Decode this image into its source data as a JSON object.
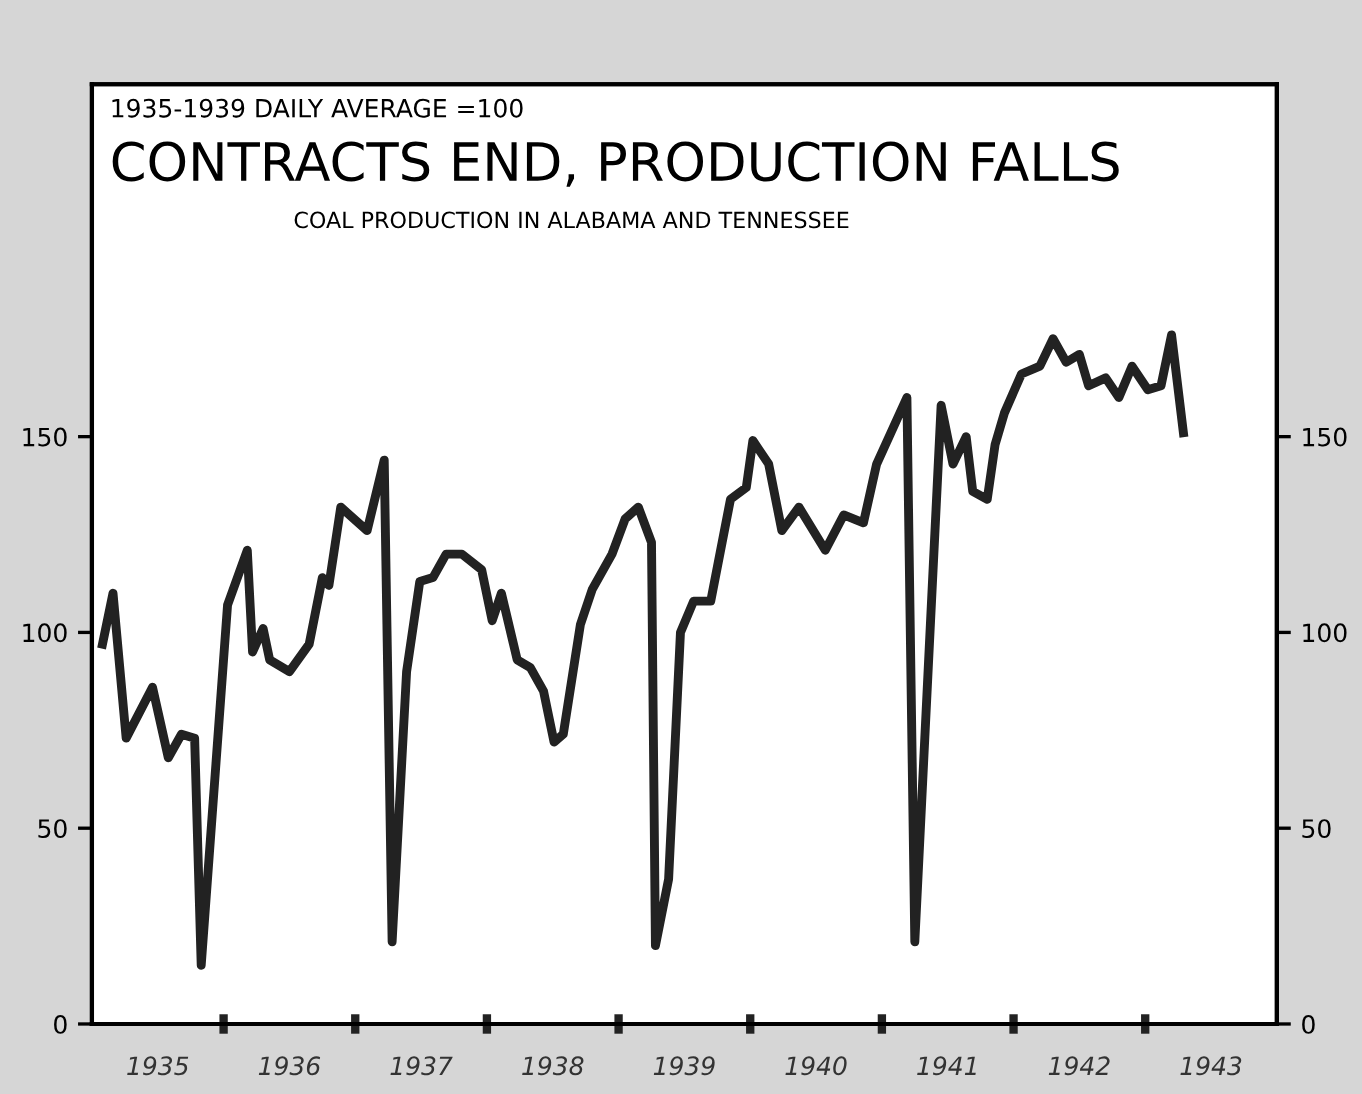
{
  "chart_data": {
    "type": "line",
    "title": "CONTRACTS END, PRODUCTION FALLS",
    "subtitle": "COAL PRODUCTION IN ALABAMA AND TENNESSEE",
    "annotations": [
      "1935-1939 DAILY AVERAGE =100"
    ],
    "series": [
      {
        "color": "#222222",
        "x": [
          1935.08,
          1935.16,
          1935.26,
          1935.46,
          1935.58,
          1935.68,
          1935.78,
          1935.83,
          1936.03,
          1936.18,
          1936.22,
          1936.3,
          1936.35,
          1936.5,
          1936.65,
          1936.75,
          1936.8,
          1936.89,
          1937.09,
          1937.22,
          1937.28,
          1937.39,
          1937.49,
          1937.59,
          1937.69,
          1937.81,
          1937.96,
          1938.04,
          1938.11,
          1938.23,
          1938.33,
          1938.43,
          1938.51,
          1938.58,
          1938.71,
          1938.8,
          1938.95,
          1939.05,
          1939.15,
          1939.25,
          1939.28,
          1939.38,
          1939.47,
          1939.57,
          1939.7,
          1939.85,
          1939.97,
          1940.02,
          1940.14,
          1940.24,
          1940.37,
          1940.57,
          1940.71,
          1940.86,
          1940.96,
          1941.19,
          1941.25,
          1941.45,
          1941.54,
          1941.64,
          1941.69,
          1941.8,
          1941.86,
          1941.93,
          1942.06,
          1942.2,
          1942.3,
          1942.4,
          1942.5,
          1942.57,
          1942.7,
          1942.8,
          1942.9,
          1943.02,
          1943.12,
          1943.2,
          1943.29
        ],
        "values": [
          97,
          110,
          73,
          86,
          68,
          74,
          73,
          15,
          107,
          121,
          95,
          101,
          93,
          90,
          97,
          114,
          112,
          132,
          126,
          144,
          21,
          90,
          113,
          114,
          120,
          120,
          116,
          103,
          110,
          93,
          91,
          85,
          72,
          74,
          102,
          111,
          120,
          129,
          132,
          123,
          20,
          37,
          100,
          108,
          108,
          134,
          137,
          149,
          143,
          126,
          132,
          121,
          130,
          128,
          143,
          160,
          21,
          158,
          143,
          150,
          136,
          134,
          148,
          156,
          166,
          168,
          175,
          169,
          171,
          163,
          165,
          160,
          168,
          162,
          163,
          176,
          151
        ]
      }
    ],
    "xlim": [
      1935,
      1944
    ],
    "xticks": [
      {
        "value": 1935.5,
        "label": "1935"
      },
      {
        "value": 1936,
        "label": null
      },
      {
        "value": 1936.5,
        "label": "1936"
      },
      {
        "value": 1937,
        "label": null
      },
      {
        "value": 1937.5,
        "label": "1937"
      },
      {
        "value": 1938,
        "label": null
      },
      {
        "value": 1938.5,
        "label": "1938"
      },
      {
        "value": 1939,
        "label": null
      },
      {
        "value": 1939.5,
        "label": "1939"
      },
      {
        "value": 1940,
        "label": null
      },
      {
        "value": 1940.5,
        "label": "1940"
      },
      {
        "value": 1941,
        "label": null
      },
      {
        "value": 1941.5,
        "label": "1941"
      },
      {
        "value": 1942,
        "label": null
      },
      {
        "value": 1942.5,
        "label": "1942"
      },
      {
        "value": 1943,
        "label": null
      },
      {
        "value": 1943.5,
        "label": "1943"
      }
    ],
    "ylim": [
      0,
      240
    ],
    "yticks": [
      0,
      50,
      100,
      150
    ],
    "y2lim": [
      0,
      240
    ],
    "y2ticks": [
      0,
      50,
      100,
      150
    ],
    "grid": false,
    "legend": false,
    "marker": "none",
    "line_style": "solid"
  }
}
